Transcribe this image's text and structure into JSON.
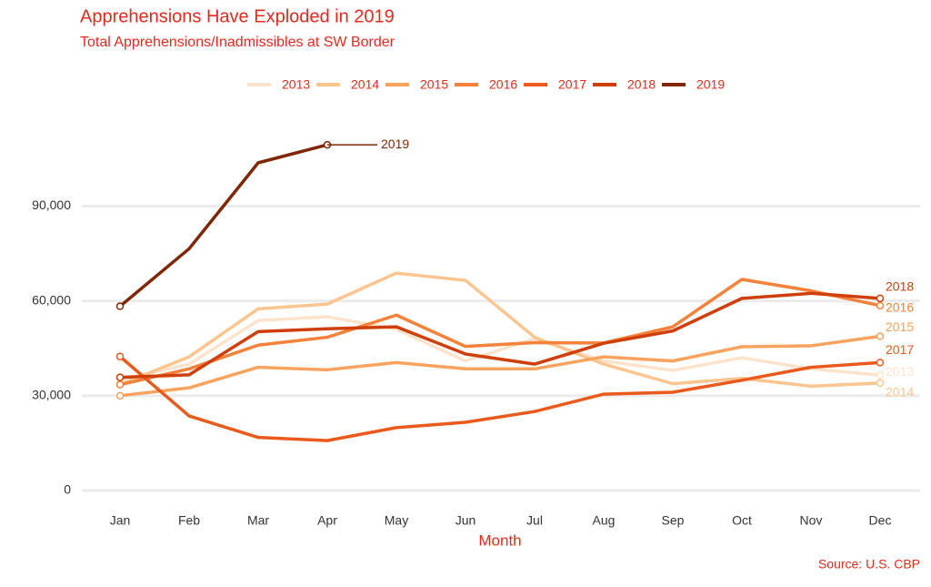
{
  "chart_data": {
    "type": "line",
    "title": "Apprehensions Have Exploded in 2019",
    "subtitle": "Total Apprehensions/Inadmissibles at SW Border",
    "x_label": "Month",
    "caption": "Source: U.S. CBP",
    "categories": [
      "Jan",
      "Feb",
      "Mar",
      "Apr",
      "May",
      "Jun",
      "Jul",
      "Aug",
      "Sep",
      "Oct",
      "Nov",
      "Dec"
    ],
    "ylim": [
      0,
      110000
    ],
    "yticks": [
      0,
      {
        "value": 30000,
        "label": "30,000"
      },
      {
        "value": 60000,
        "label": "60,000"
      },
      {
        "value": 90000,
        "label": "90,000"
      }
    ],
    "grid": true,
    "legend": "top",
    "series": [
      {
        "name": "2013",
        "color": "#fde3cc",
        "values": [
          35000,
          40000,
          53800,
          55000,
          51000,
          41000,
          48000,
          41000,
          38000,
          42000,
          38500,
          36500
        ]
      },
      {
        "name": "2014",
        "color": "#fcc58f",
        "values": [
          33500,
          42300,
          57500,
          59000,
          68800,
          66500,
          48500,
          40000,
          33800,
          35500,
          33000,
          34000
        ]
      },
      {
        "name": "2015",
        "color": "#f9a35e",
        "values": [
          30000,
          32500,
          39000,
          38200,
          40500,
          38500,
          38500,
          42300,
          41000,
          45500,
          45800,
          48800
        ]
      },
      {
        "name": "2016",
        "color": "#f5823a",
        "values": [
          33500,
          38500,
          46000,
          48500,
          55500,
          45600,
          46800,
          46700,
          51800,
          66800,
          63200,
          58500
        ]
      },
      {
        "name": "2017",
        "color": "#e95a1c",
        "values": [
          42400,
          23600,
          16800,
          15800,
          19900,
          21600,
          25000,
          30500,
          31100,
          34900,
          39000,
          40500
        ]
      },
      {
        "name": "2018",
        "color": "#cf3f0a",
        "values": [
          35800,
          36600,
          50300,
          51200,
          51800,
          43200,
          40000,
          46600,
          50500,
          60800,
          62400,
          60800
        ]
      },
      {
        "name": "2019",
        "color": "#7f2704",
        "values": [
          58300,
          76500,
          103700,
          109400,
          null,
          null,
          null,
          null,
          null,
          null,
          null,
          null
        ]
      }
    ]
  }
}
